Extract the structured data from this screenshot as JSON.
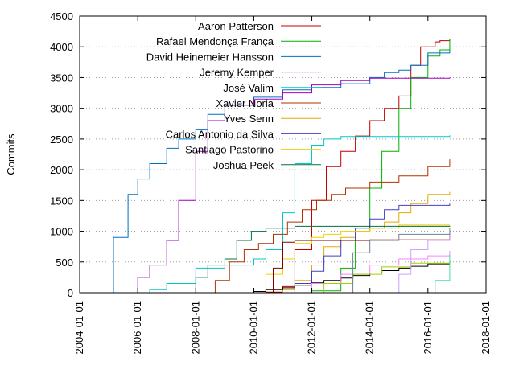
{
  "chart_data": {
    "type": "line",
    "ylabel": "Commits",
    "xlabel": "",
    "title": "",
    "x_ticks": [
      "2004-01-01",
      "2006-01-01",
      "2008-01-01",
      "2010-01-01",
      "2012-01-01",
      "2014-01-01",
      "2016-01-01",
      "2018-01-01"
    ],
    "y_ticks": [
      "0",
      "500",
      "1000",
      "1500",
      "2000",
      "2500",
      "3000",
      "3500",
      "4000",
      "4500"
    ],
    "xlim": [
      "2004-01-01",
      "2018-01-01"
    ],
    "ylim": [
      0,
      4500
    ],
    "grid": "horizontal-dotted",
    "legend_position": "top-left",
    "series": [
      {
        "name": "Aaron Patterson",
        "color": "#c00000",
        "points": [
          [
            "2009-12-15",
            0
          ],
          [
            "2010-06-01",
            10
          ],
          [
            "2011-01-01",
            100
          ],
          [
            "2011-06-01",
            700
          ],
          [
            "2012-01-01",
            1500
          ],
          [
            "2012-07-01",
            2050
          ],
          [
            "2013-01-01",
            2300
          ],
          [
            "2013-07-01",
            2550
          ],
          [
            "2014-01-01",
            2800
          ],
          [
            "2014-07-01",
            3000
          ],
          [
            "2015-01-01",
            3200
          ],
          [
            "2015-06-01",
            3700
          ],
          [
            "2015-10-01",
            4000
          ],
          [
            "2016-04-01",
            4080
          ],
          [
            "2016-06-01",
            4100
          ],
          [
            "2016-10-01",
            4120
          ]
        ]
      },
      {
        "name": "Rafael Mendonça França",
        "color": "#00b000",
        "points": [
          [
            "2011-06-01",
            0
          ],
          [
            "2012-01-01",
            30
          ],
          [
            "2013-01-01",
            400
          ],
          [
            "2013-07-01",
            1000
          ],
          [
            "2014-01-01",
            1700
          ],
          [
            "2014-06-01",
            2300
          ],
          [
            "2015-01-01",
            3000
          ],
          [
            "2015-06-01",
            3500
          ],
          [
            "2016-01-01",
            3850
          ],
          [
            "2016-06-01",
            3950
          ],
          [
            "2016-10-01",
            4130
          ]
        ]
      },
      {
        "name": "David Heinemeier Hansson",
        "color": "#0070c0",
        "points": [
          [
            "2004-11-01",
            0
          ],
          [
            "2005-03-01",
            900
          ],
          [
            "2005-09-01",
            1600
          ],
          [
            "2006-01-01",
            1850
          ],
          [
            "2006-06-01",
            2100
          ],
          [
            "2007-01-01",
            2350
          ],
          [
            "2007-06-01",
            2500
          ],
          [
            "2008-01-01",
            2650
          ],
          [
            "2008-06-01",
            2900
          ],
          [
            "2009-01-01",
            3050
          ],
          [
            "2010-01-01",
            3180
          ],
          [
            "2011-01-01",
            3300
          ],
          [
            "2012-01-01",
            3340
          ],
          [
            "2013-01-01",
            3400
          ],
          [
            "2014-01-01",
            3500
          ],
          [
            "2014-07-01",
            3580
          ],
          [
            "2015-01-01",
            3620
          ],
          [
            "2015-06-01",
            3700
          ],
          [
            "2016-01-01",
            3900
          ],
          [
            "2016-10-01",
            3950
          ]
        ]
      },
      {
        "name": "Jeremy Kemper",
        "color": "#a000c8",
        "points": [
          [
            "2005-06-01",
            0
          ],
          [
            "2006-01-01",
            250
          ],
          [
            "2006-06-01",
            450
          ],
          [
            "2007-01-01",
            850
          ],
          [
            "2007-06-01",
            1500
          ],
          [
            "2008-01-01",
            2300
          ],
          [
            "2008-06-01",
            2800
          ],
          [
            "2009-01-01",
            3050
          ],
          [
            "2010-01-01",
            3150
          ],
          [
            "2011-01-01",
            3250
          ],
          [
            "2012-01-01",
            3380
          ],
          [
            "2013-01-01",
            3450
          ],
          [
            "2014-01-01",
            3490
          ],
          [
            "2016-10-01",
            3500
          ]
        ]
      },
      {
        "name": "José Valim",
        "color": "#00c8c8",
        "points": [
          [
            "2005-10-01",
            0
          ],
          [
            "2006-06-01",
            50
          ],
          [
            "2007-01-01",
            150
          ],
          [
            "2008-01-01",
            400
          ],
          [
            "2009-01-01",
            450
          ],
          [
            "2010-01-01",
            550
          ],
          [
            "2010-06-01",
            700
          ],
          [
            "2011-01-01",
            1300
          ],
          [
            "2011-06-01",
            2100
          ],
          [
            "2012-01-01",
            2400
          ],
          [
            "2012-06-01",
            2500
          ],
          [
            "2013-01-01",
            2540
          ],
          [
            "2016-10-01",
            2560
          ]
        ]
      },
      {
        "name": "Xavier Noria",
        "color": "#b03000",
        "points": [
          [
            "2008-03-01",
            0
          ],
          [
            "2008-09-01",
            200
          ],
          [
            "2009-03-01",
            500
          ],
          [
            "2009-09-01",
            700
          ],
          [
            "2010-03-01",
            800
          ],
          [
            "2010-09-01",
            950
          ],
          [
            "2011-03-01",
            1150
          ],
          [
            "2011-09-01",
            1350
          ],
          [
            "2012-03-01",
            1500
          ],
          [
            "2012-09-01",
            1600
          ],
          [
            "2013-03-01",
            1700
          ],
          [
            "2014-01-01",
            1800
          ],
          [
            "2015-01-01",
            1900
          ],
          [
            "2016-01-01",
            2050
          ],
          [
            "2016-10-01",
            2170
          ]
        ]
      },
      {
        "name": "Yves Senn",
        "color": "#e8a800",
        "points": [
          [
            "2010-06-01",
            0
          ],
          [
            "2011-01-01",
            50
          ],
          [
            "2011-06-01",
            200
          ],
          [
            "2012-01-01",
            450
          ],
          [
            "2012-06-01",
            750
          ],
          [
            "2013-01-01",
            900
          ],
          [
            "2013-07-01",
            1000
          ],
          [
            "2014-01-01",
            1050
          ],
          [
            "2014-07-01",
            1150
          ],
          [
            "2015-01-01",
            1300
          ],
          [
            "2015-06-01",
            1450
          ],
          [
            "2016-01-01",
            1600
          ],
          [
            "2016-10-01",
            1640
          ]
        ]
      },
      {
        "name": "Carlos Antonio da Silva",
        "color": "#4040c0",
        "points": [
          [
            "2010-06-01",
            0
          ],
          [
            "2011-06-01",
            150
          ],
          [
            "2012-01-01",
            350
          ],
          [
            "2012-06-01",
            600
          ],
          [
            "2013-01-01",
            850
          ],
          [
            "2013-07-01",
            1050
          ],
          [
            "2014-01-01",
            1200
          ],
          [
            "2014-07-01",
            1350
          ],
          [
            "2015-01-01",
            1420
          ],
          [
            "2016-10-01",
            1450
          ]
        ]
      },
      {
        "name": "Santiago Pastorino",
        "color": "#f0d000",
        "points": [
          [
            "2010-01-01",
            0
          ],
          [
            "2010-06-01",
            300
          ],
          [
            "2011-01-01",
            550
          ],
          [
            "2011-06-01",
            800
          ],
          [
            "2012-01-01",
            900
          ],
          [
            "2012-06-01",
            950
          ],
          [
            "2013-01-01",
            1000
          ],
          [
            "2014-01-01",
            1050
          ],
          [
            "2015-01-01",
            1100
          ],
          [
            "2016-10-01",
            1100
          ]
        ]
      },
      {
        "name": "Joshua Peek",
        "color": "#007040",
        "points": [
          [
            "2007-06-01",
            0
          ],
          [
            "2008-01-01",
            250
          ],
          [
            "2008-06-01",
            450
          ],
          [
            "2009-01-01",
            550
          ],
          [
            "2009-06-01",
            850
          ],
          [
            "2009-12-01",
            1000
          ],
          [
            "2010-06-01",
            1050
          ],
          [
            "2011-06-01",
            1080
          ],
          [
            "2016-10-01",
            1090
          ]
        ]
      },
      {
        "name": "",
        "color": "#000000",
        "points": [
          [
            "2009-06-01",
            0
          ],
          [
            "2010-01-01",
            20
          ],
          [
            "2010-06-01",
            50
          ],
          [
            "2011-01-01",
            80
          ],
          [
            "2011-06-01",
            120
          ],
          [
            "2012-01-01",
            160
          ],
          [
            "2012-06-01",
            200
          ],
          [
            "2013-01-01",
            240
          ],
          [
            "2013-06-01",
            280
          ],
          [
            "2014-01-01",
            320
          ],
          [
            "2014-06-01",
            360
          ],
          [
            "2015-01-01",
            400
          ],
          [
            "2015-06-01",
            430
          ],
          [
            "2016-01-01",
            470
          ],
          [
            "2016-10-01",
            500
          ]
        ]
      },
      {
        "name": "",
        "color": "#ff80ff",
        "points": [
          [
            "2011-01-01",
            0
          ],
          [
            "2012-01-01",
            150
          ],
          [
            "2013-01-01",
            300
          ],
          [
            "2014-01-01",
            450
          ],
          [
            "2015-01-01",
            550
          ],
          [
            "2016-01-01",
            600
          ],
          [
            "2016-10-01",
            680
          ]
        ]
      },
      {
        "name": "",
        "color": "#a0d000",
        "points": [
          [
            "2011-06-01",
            0
          ],
          [
            "2012-06-01",
            150
          ],
          [
            "2013-06-01",
            300
          ],
          [
            "2014-06-01",
            420
          ],
          [
            "2015-06-01",
            480
          ],
          [
            "2016-10-01",
            540
          ]
        ]
      },
      {
        "name": "",
        "color": "#800000",
        "points": [
          [
            "2010-06-01",
            0
          ],
          [
            "2010-09-01",
            400
          ],
          [
            "2011-01-01",
            820
          ],
          [
            "2011-06-01",
            850
          ],
          [
            "2014-01-01",
            860
          ],
          [
            "2016-10-01",
            960
          ]
        ]
      },
      {
        "name": "",
        "color": "#d0a0ff",
        "points": [
          [
            "2014-06-01",
            0
          ],
          [
            "2015-01-01",
            300
          ],
          [
            "2015-06-01",
            700
          ],
          [
            "2016-01-01",
            850
          ],
          [
            "2016-10-01",
            980
          ]
        ]
      },
      {
        "name": "",
        "color": "#708090",
        "points": [
          [
            "2012-06-01",
            0
          ],
          [
            "2013-06-01",
            650
          ],
          [
            "2014-01-01",
            850
          ],
          [
            "2015-01-01",
            950
          ],
          [
            "2016-10-01",
            1050
          ]
        ]
      },
      {
        "name": "",
        "color": "#40e0a0",
        "points": [
          [
            "2015-10-01",
            0
          ],
          [
            "2016-04-01",
            200
          ],
          [
            "2016-10-01",
            620
          ]
        ]
      }
    ]
  }
}
